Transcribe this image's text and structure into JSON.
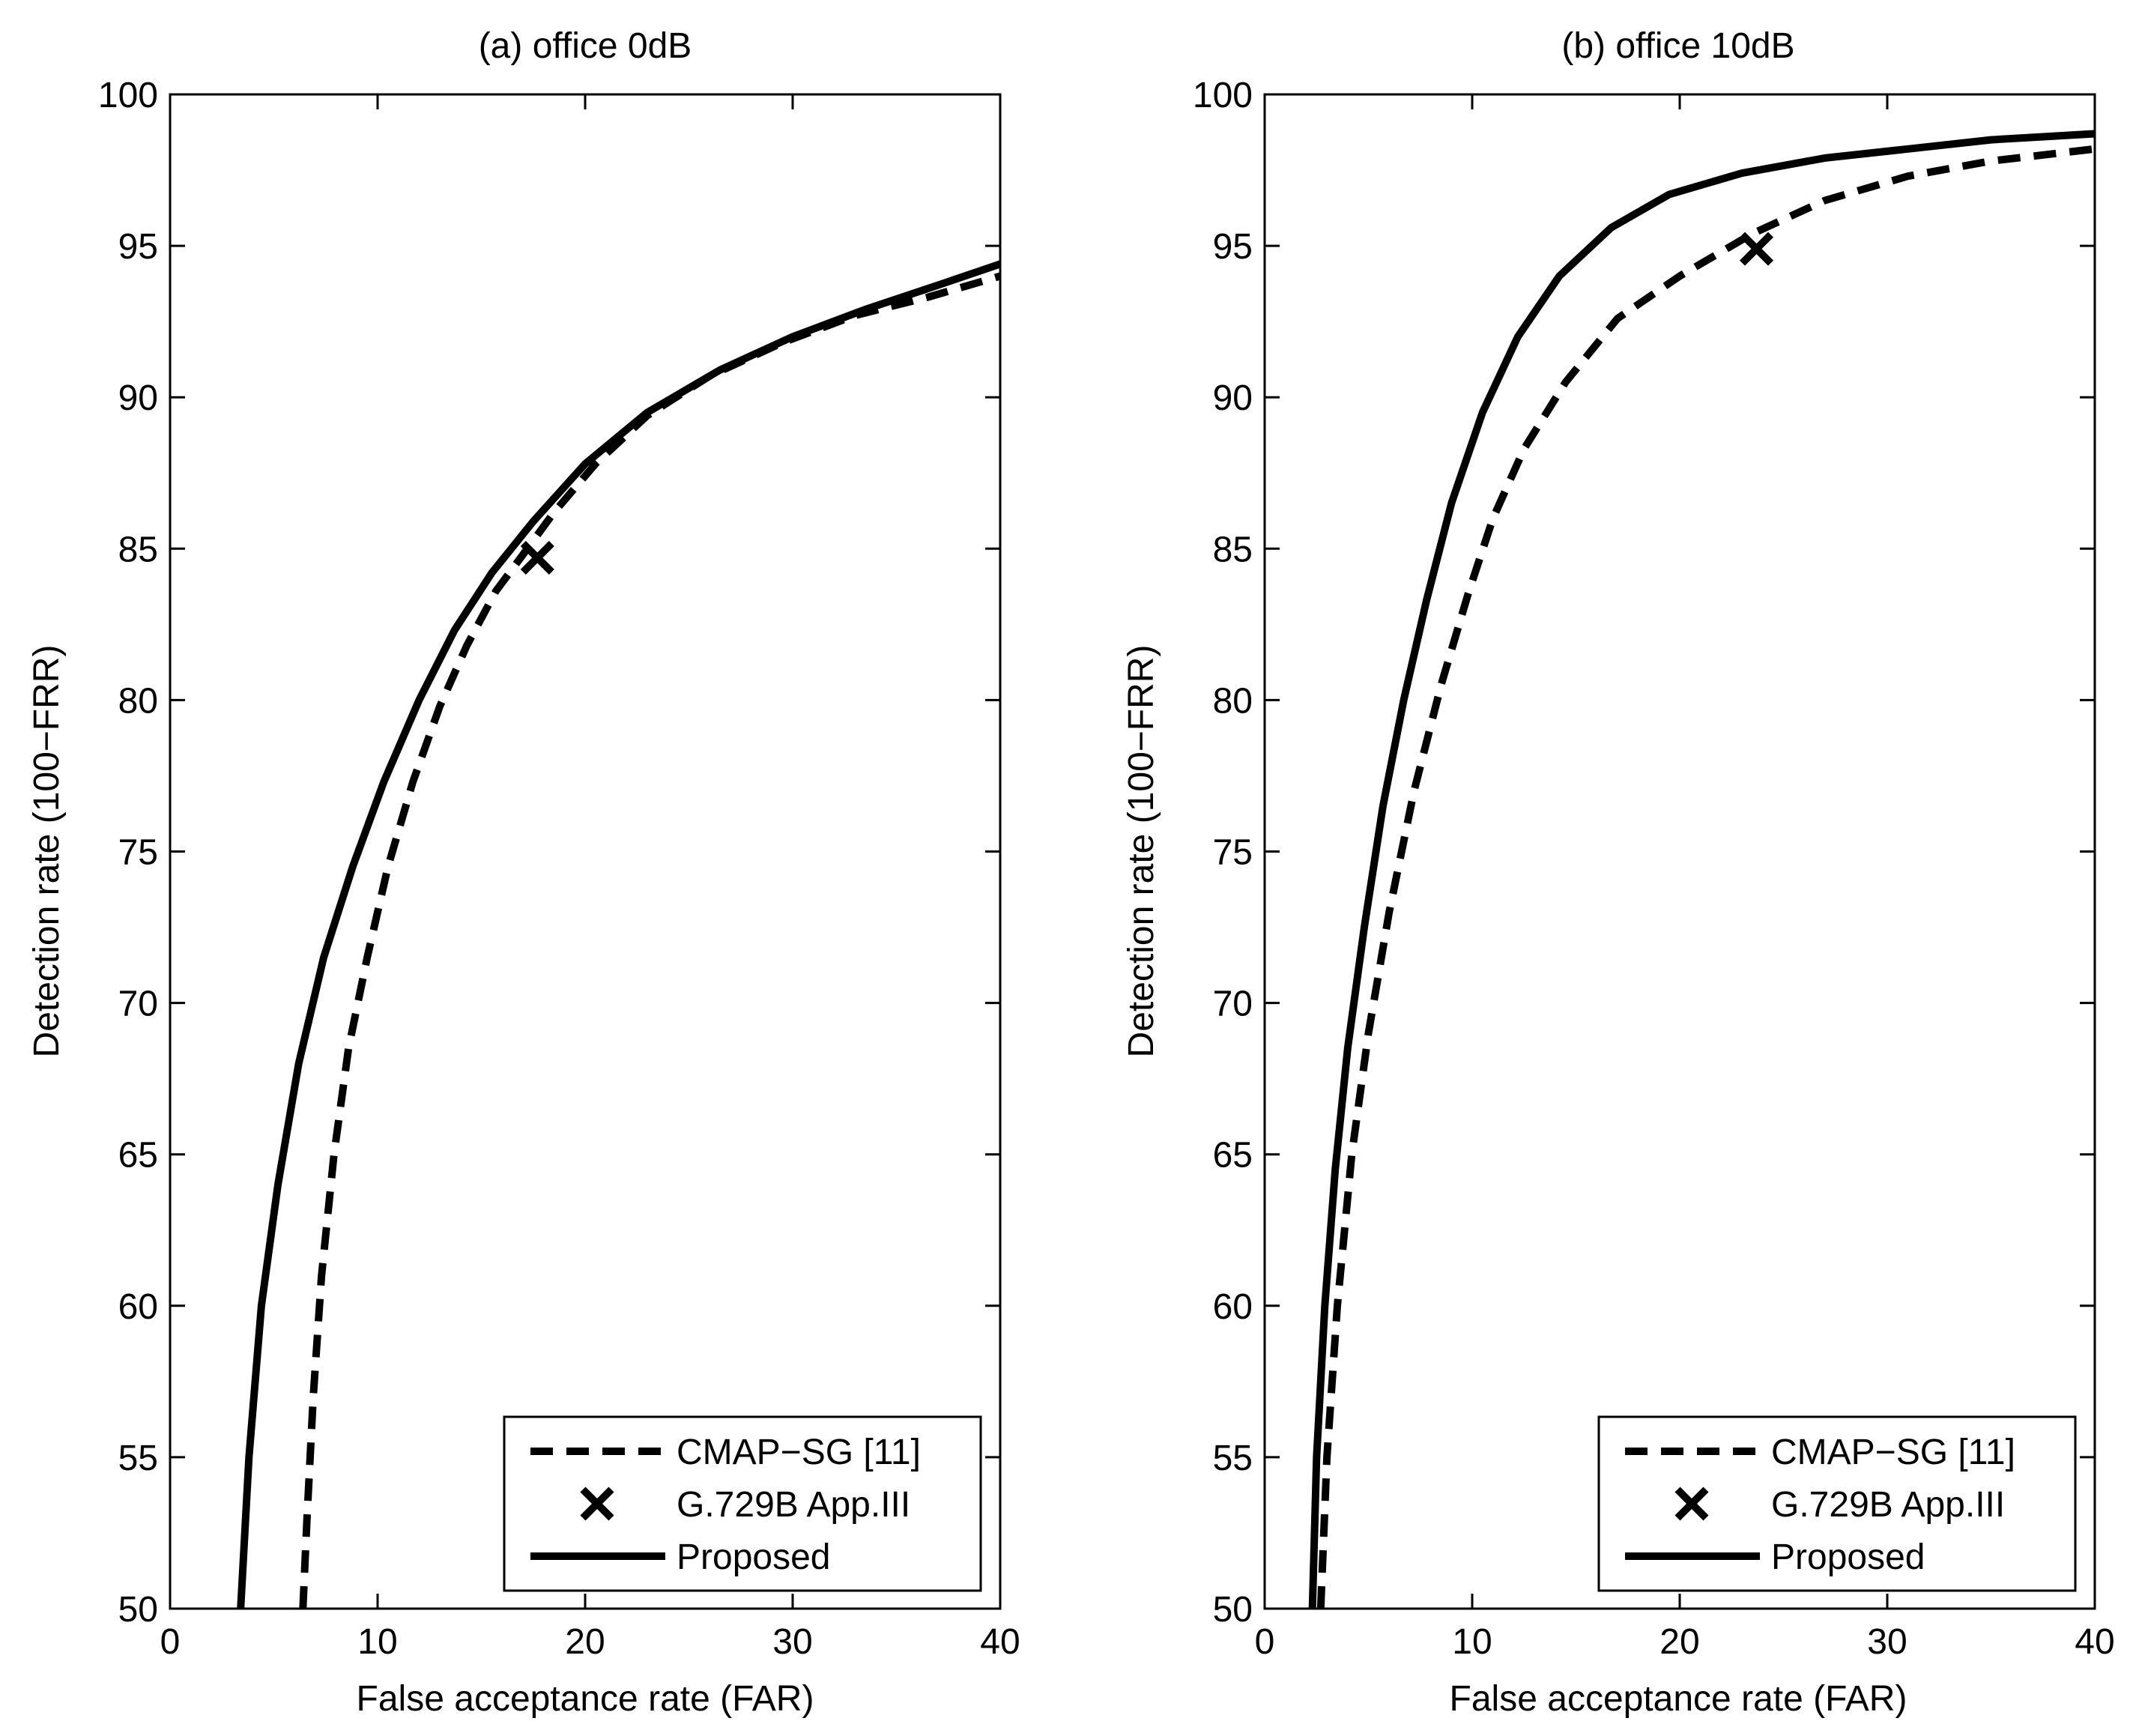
{
  "colors": {
    "line": "#000000",
    "background": "#ffffff"
  },
  "chart_data": [
    {
      "type": "line",
      "title": "(a) office 0dB",
      "xlabel": "False acceptance rate (FAR)",
      "ylabel": "Detection rate (100−FRR)",
      "xlim": [
        0,
        40
      ],
      "ylim": [
        50,
        100
      ],
      "xticks": [
        0,
        10,
        20,
        30,
        40
      ],
      "yticks": [
        50,
        55,
        60,
        65,
        70,
        75,
        80,
        85,
        90,
        95,
        100
      ],
      "grid": false,
      "legend_position": "bottom-right",
      "legend": [
        {
          "label": "CMAP−SG [11]",
          "style": "dashed"
        },
        {
          "label": "G.729B App.III",
          "style": "marker-x"
        },
        {
          "label": "Proposed",
          "style": "solid"
        }
      ],
      "series": [
        {
          "name": "CMAP−SG [11]",
          "style": "dashed",
          "x": [
            6.4,
            6.6,
            6.9,
            7.3,
            7.9,
            8.6,
            9.5,
            10.5,
            11.7,
            13.0,
            14.3,
            15.7,
            17.0,
            18.5,
            20.5,
            23.0,
            26.0,
            29.5,
            33.0,
            36.5,
            40.0
          ],
          "y": [
            50,
            53,
            57,
            61,
            65,
            68.5,
            71.5,
            74.5,
            77.3,
            79.8,
            81.8,
            83.6,
            84.8,
            86.2,
            87.8,
            89.4,
            90.7,
            91.8,
            92.7,
            93.3,
            94.0
          ]
        },
        {
          "name": "Proposed",
          "style": "solid",
          "x": [
            3.4,
            3.8,
            4.4,
            5.2,
            6.2,
            7.4,
            8.8,
            10.3,
            12.0,
            13.7,
            15.5,
            17.5,
            20.0,
            23.0,
            26.5,
            30.0,
            33.5,
            37.0,
            40.0
          ],
          "y": [
            50,
            55,
            60,
            64,
            68,
            71.5,
            74.5,
            77.3,
            80.0,
            82.3,
            84.2,
            85.9,
            87.8,
            89.5,
            90.9,
            92.0,
            92.9,
            93.7,
            94.4
          ]
        },
        {
          "name": "G.729B App.III",
          "style": "marker-x",
          "x": [
            17.7
          ],
          "y": [
            84.7
          ]
        }
      ]
    },
    {
      "type": "line",
      "title": "(b) office 10dB",
      "xlabel": "False acceptance rate (FAR)",
      "ylabel": "Detection rate (100−FRR)",
      "xlim": [
        0,
        40
      ],
      "ylim": [
        50,
        100
      ],
      "xticks": [
        0,
        10,
        20,
        30,
        40
      ],
      "yticks": [
        50,
        55,
        60,
        65,
        70,
        75,
        80,
        85,
        90,
        95,
        100
      ],
      "grid": false,
      "legend_position": "bottom-right",
      "legend": [
        {
          "label": "CMAP−SG [11]",
          "style": "dashed"
        },
        {
          "label": "G.729B App.III",
          "style": "marker-x"
        },
        {
          "label": "Proposed",
          "style": "solid"
        }
      ],
      "series": [
        {
          "name": "CMAP−SG [11]",
          "style": "dashed",
          "x": [
            2.7,
            3.0,
            3.5,
            4.2,
            5.0,
            6.0,
            7.2,
            8.5,
            9.8,
            11.0,
            12.5,
            14.5,
            17.0,
            20.0,
            23.5,
            27.0,
            31.0,
            35.0,
            40.0
          ],
          "y": [
            50,
            55,
            60,
            65,
            69,
            73,
            77,
            80.5,
            83.5,
            86.0,
            88.3,
            90.5,
            92.6,
            94.0,
            95.4,
            96.5,
            97.3,
            97.8,
            98.2
          ]
        },
        {
          "name": "Proposed",
          "style": "solid",
          "x": [
            2.3,
            2.5,
            2.9,
            3.4,
            4.0,
            4.8,
            5.7,
            6.7,
            7.8,
            9.0,
            10.5,
            12.2,
            14.2,
            16.7,
            19.5,
            23.0,
            27.0,
            31.0,
            35.0,
            40.0
          ],
          "y": [
            50,
            55,
            60,
            64.5,
            68.5,
            72.5,
            76.5,
            80.0,
            83.3,
            86.5,
            89.5,
            92.0,
            94.0,
            95.6,
            96.7,
            97.4,
            97.9,
            98.2,
            98.5,
            98.7
          ]
        },
        {
          "name": "G.729B App.III",
          "style": "marker-x",
          "x": [
            23.7
          ],
          "y": [
            94.9
          ]
        }
      ]
    }
  ]
}
